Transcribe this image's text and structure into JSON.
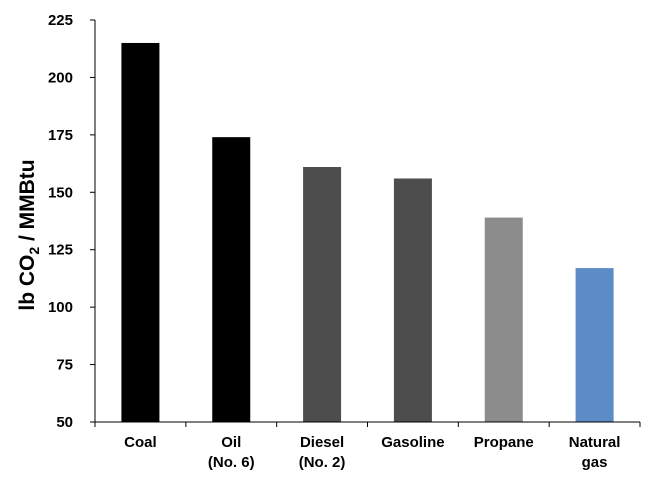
{
  "chart_data": {
    "type": "bar",
    "title": "",
    "xlabel": "",
    "ylabel": {
      "prefix": "lb CO",
      "subscript": "2",
      "suffix": " / MMBtu"
    },
    "ylim": [
      50,
      225
    ],
    "yticks": [
      50,
      75,
      100,
      125,
      150,
      175,
      200,
      225
    ],
    "grid": false,
    "legend": "none",
    "categories": [
      [
        "Coal"
      ],
      [
        "Oil",
        "(No. 6)"
      ],
      [
        "Diesel",
        "(No. 2)"
      ],
      [
        "Gasoline"
      ],
      [
        "Propane"
      ],
      [
        "Natural",
        "gas"
      ]
    ],
    "values": [
      215,
      174,
      161,
      156,
      139,
      117
    ],
    "colors": [
      "#000000",
      "#000000",
      "#4d4d4d",
      "#4d4d4d",
      "#8c8c8c",
      "#5b8cc8"
    ]
  }
}
